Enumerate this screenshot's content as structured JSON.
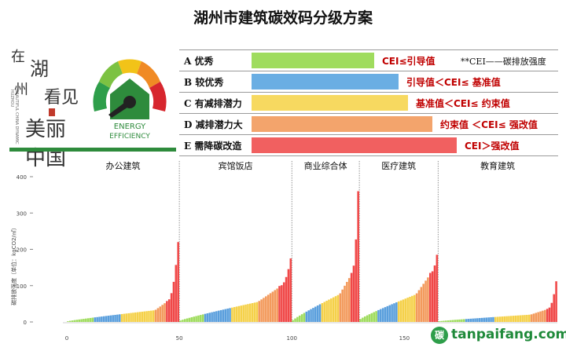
{
  "title": "湖州市建筑碳效码分级方案",
  "calligraphy": {
    "chars": [
      "在",
      "湖",
      "州",
      "看见",
      "美丽中国"
    ],
    "english": "BEAUTIFUL CHINA DYNAMIC HUZHOU"
  },
  "logo": {
    "line1": "ENERGY",
    "line2": "EFFICIENCY",
    "dial_colors": [
      "#2e9e4a",
      "#7cc242",
      "#f2c318",
      "#f08a24",
      "#d7262e"
    ]
  },
  "cei_note": "**CEI——碳排放强度",
  "grades": [
    {
      "label": "A 优秀",
      "rule": "CEI≤引导值",
      "color": "#9fdc5e",
      "bar_fraction": 0.4
    },
    {
      "label": "B 较优秀",
      "rule": "引导值＜CEI≤ 基准值",
      "color": "#6aaee3",
      "bar_fraction": 0.48
    },
    {
      "label": "C 有减排潜力",
      "rule": "基准值＜CEI≤ 约束值",
      "color": "#f7d960",
      "bar_fraction": 0.51
    },
    {
      "label": "D 减排潜力大",
      "rule": "约束值 ＜CEI≤ 强改值",
      "color": "#f3a46c",
      "bar_fraction": 0.59
    },
    {
      "label": "E 需降碳改造",
      "rule": "CEI＞强改值",
      "color": "#f16060",
      "bar_fraction": 0.67
    }
  ],
  "chart_data": {
    "type": "bar",
    "ylabel": "碳排放强度（单位：kgCO2/㎡）",
    "ylim": [
      0,
      400
    ],
    "yticks": [
      0,
      100,
      200,
      300,
      400
    ],
    "xlim": [
      0,
      180
    ],
    "xticks": [
      0,
      50,
      100,
      150
    ],
    "grade_colors": {
      "A": "#9fdc5e",
      "B": "#5a9fdd",
      "C": "#f5d14a",
      "D": "#f39a5c",
      "E": "#f04848"
    },
    "panels": [
      {
        "name": "办公建筑",
        "start": 0,
        "end": 50,
        "n": 50,
        "e_count": 6,
        "d_count": 5,
        "c_count": 15,
        "b_count": 12,
        "min": 2,
        "base": 32,
        "max": 220
      },
      {
        "name": "宾馆饭店",
        "start": 50,
        "end": 100,
        "n": 50,
        "e_count": 6,
        "d_count": 9,
        "c_count": 12,
        "b_count": 12,
        "min": 4,
        "base": 55,
        "max": 175
      },
      {
        "name": "商业综合体",
        "start": 100,
        "end": 130,
        "n": 30,
        "e_count": 4,
        "d_count": 5,
        "c_count": 8,
        "b_count": 7,
        "min": 5,
        "base": 75,
        "max": 360
      },
      {
        "name": "医疗建筑",
        "start": 130,
        "end": 165,
        "n": 35,
        "e_count": 4,
        "d_count": 6,
        "c_count": 8,
        "b_count": 9,
        "min": 8,
        "base": 75,
        "max": 185
      },
      {
        "name": "教育建筑",
        "start": 165,
        "end": 218,
        "n": 53,
        "e_count": 5,
        "d_count": 7,
        "c_count": 16,
        "b_count": 13,
        "min": 2,
        "base": 20,
        "max": 112
      }
    ]
  },
  "watermark": {
    "icon": "碳",
    "text": "tanpaifang.com"
  }
}
